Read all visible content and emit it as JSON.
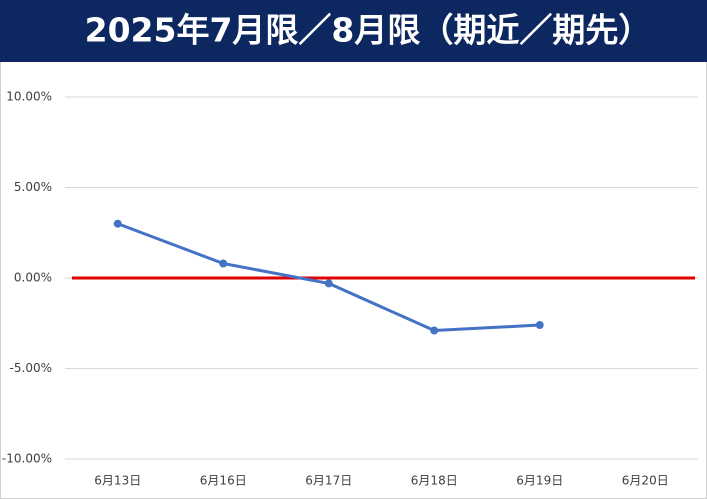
{
  "chart_data": {
    "type": "line",
    "title": "2025年7月限／8月限（期近／期先）",
    "categories": [
      "6月13日",
      "6月16日",
      "6月17日",
      "6月18日",
      "6月19日",
      "6月20日"
    ],
    "values": [
      3.0,
      0.8,
      -0.3,
      -2.9,
      -2.6,
      null
    ],
    "color": "#4472c4",
    "zero_line_color": "#e00000",
    "ylim": [
      -10,
      10
    ],
    "yticks": [
      {
        "value": -10,
        "label": "-10.00%"
      },
      {
        "value": -5,
        "label": "-5.00%"
      },
      {
        "value": 0,
        "label": "0.00%"
      },
      {
        "value": 5,
        "label": "5.00%"
      },
      {
        "value": 10,
        "label": "10.00%"
      }
    ],
    "grid": true
  }
}
